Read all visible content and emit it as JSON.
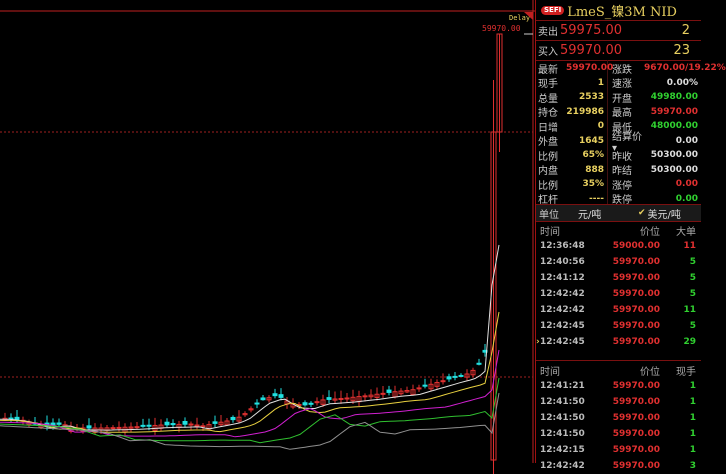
{
  "chart": {
    "high_label": "59970.00",
    "delay_label": "Delay"
  },
  "header": {
    "badge": "SEFI",
    "title": "LmeS_镍3M NID"
  },
  "ask": {
    "label": "卖出",
    "price": "59975.00",
    "volume": "2"
  },
  "bid": {
    "label": "买入",
    "price": "59970.00",
    "volume": "23"
  },
  "stats": [
    {
      "l1": "最新",
      "v1": "59970.00",
      "c1": "red",
      "l2": "涨跌",
      "v2": "9670.00/19.22%",
      "c2": "red"
    },
    {
      "l1": "现手",
      "v1": "1",
      "c1": "yel",
      "l2": "速涨",
      "v2": "0.00%",
      "c2": "wht"
    },
    {
      "l1": "总量",
      "v1": "2533",
      "c1": "yel",
      "l2": "开盘",
      "v2": "49980.00",
      "c2": "grn"
    },
    {
      "l1": "持仓",
      "v1": "219986",
      "c1": "yel",
      "l2": "最高",
      "v2": "59970.00",
      "c2": "red"
    },
    {
      "l1": "日增",
      "v1": "0",
      "c1": "yel",
      "l2": "最低",
      "v2": "48000.00",
      "c2": "grn"
    },
    {
      "l1": "外盘",
      "v1": "1645",
      "c1": "yel",
      "l2": "结算价▾",
      "v2": "0.00",
      "c2": "wht"
    },
    {
      "l1": "比例",
      "v1": "65%",
      "c1": "yel",
      "l2": "昨收",
      "v2": "50300.00",
      "c2": "wht"
    },
    {
      "l1": "内盘",
      "v1": "888",
      "c1": "yel",
      "l2": "昨结",
      "v2": "50300.00",
      "c2": "wht"
    },
    {
      "l1": "比例",
      "v1": "35%",
      "c1": "yel",
      "l2": "涨停",
      "v2": "0.00",
      "c2": "red"
    },
    {
      "l1": "杠杆",
      "v1": "----",
      "c1": "yel",
      "l2": "跌停",
      "v2": "0.00",
      "c2": "grn"
    }
  ],
  "unit": {
    "label": "单位",
    "option1": "元/吨",
    "option2": "美元/吨",
    "selected": "美元/吨"
  },
  "big_orders": {
    "headers": [
      "时间",
      "价位",
      "大单"
    ],
    "rows": [
      {
        "time": "12:36:48",
        "price": "59000.00",
        "qty": "11",
        "c": "red"
      },
      {
        "time": "12:40:56",
        "price": "59970.00",
        "qty": "5",
        "c": "grn"
      },
      {
        "time": "12:41:12",
        "price": "59970.00",
        "qty": "5",
        "c": "grn"
      },
      {
        "time": "12:42:42",
        "price": "59970.00",
        "qty": "5",
        "c": "grn"
      },
      {
        "time": "12:42:42",
        "price": "59970.00",
        "qty": "11",
        "c": "grn"
      },
      {
        "time": "12:42:45",
        "price": "59970.00",
        "qty": "5",
        "c": "grn"
      },
      {
        "time": "12:42:45",
        "price": "59970.00",
        "qty": "29",
        "c": "grn",
        "marker": "›"
      }
    ]
  },
  "ticks": {
    "headers": [
      "时间",
      "价位",
      "现手"
    ],
    "rows": [
      {
        "time": "12:41:21",
        "price": "59970.00",
        "qty": "1",
        "c": "grn"
      },
      {
        "time": "12:41:50",
        "price": "59970.00",
        "qty": "1",
        "c": "grn"
      },
      {
        "time": "12:41:50",
        "price": "59970.00",
        "qty": "1",
        "c": "grn"
      },
      {
        "time": "12:41:50",
        "price": "59970.00",
        "qty": "1",
        "c": "grn"
      },
      {
        "time": "12:42:15",
        "price": "59970.00",
        "qty": "1",
        "c": "grn"
      },
      {
        "time": "12:42:42",
        "price": "59970.00",
        "qty": "3",
        "c": "grn"
      }
    ]
  },
  "colors": {
    "up": "#e03030",
    "down": "#20e0e0",
    "ma1": "#e0e0e0",
    "ma2": "#e8d040",
    "ma3": "#d020d0",
    "ma4": "#30c030",
    "ma5": "#909090"
  }
}
